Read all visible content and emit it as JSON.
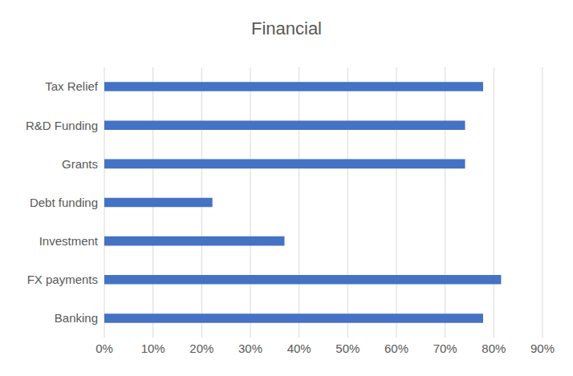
{
  "chart_data": {
    "type": "bar",
    "title": "Financial",
    "orientation": "horizontal",
    "categories": [
      "Tax Relief",
      "R&D Funding",
      "Grants",
      "Debt funding",
      "Investment",
      "FX payments",
      "Banking"
    ],
    "values": [
      77.8,
      74.1,
      74.1,
      22.2,
      37.0,
      81.5,
      77.8
    ],
    "color": "#4472c4",
    "xlim": [
      0,
      90
    ],
    "xticks": [
      {
        "value": 0,
        "label": "0%"
      },
      {
        "value": 10,
        "label": "10%"
      },
      {
        "value": 20,
        "label": "20%"
      },
      {
        "value": 30,
        "label": "30%"
      },
      {
        "value": 40,
        "label": "40%"
      },
      {
        "value": 50,
        "label": "50%"
      },
      {
        "value": 60,
        "label": "60%"
      },
      {
        "value": 70,
        "label": "70%"
      },
      {
        "value": 80,
        "label": "80%"
      },
      {
        "value": 90,
        "label": "90%"
      }
    ],
    "grid": true
  }
}
